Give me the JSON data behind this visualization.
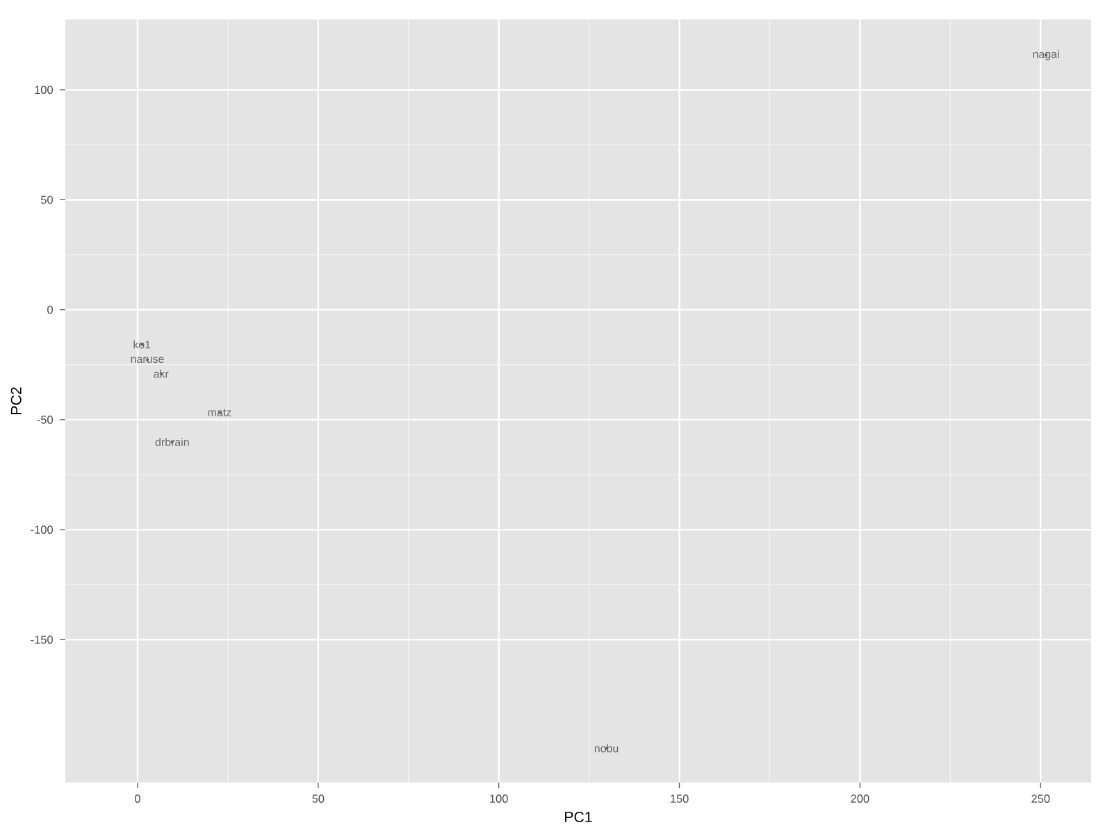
{
  "chart_data": {
    "type": "scatter",
    "xlabel": "PC1",
    "ylabel": "PC2",
    "xlim": [
      -20,
      264
    ],
    "ylim": [
      -215,
      132
    ],
    "xticks": [
      0,
      50,
      100,
      150,
      200,
      250
    ],
    "yticks": [
      -150,
      -100,
      -50,
      0,
      50,
      100
    ],
    "grid": true,
    "marker": "none",
    "series": [
      {
        "color": "#666666",
        "x": [
          251.5,
          129.8,
          22.7,
          9.6,
          6.5,
          2.7,
          1.2
        ],
        "values": [
          115.8,
          -199.4,
          -46.8,
          -60.1,
          -29.1,
          -22.8,
          -15.8
        ],
        "value_labels": [
          "nagai",
          "nobu",
          "matz",
          "drbrain",
          "akr",
          "naruse",
          "ko1"
        ]
      }
    ]
  }
}
